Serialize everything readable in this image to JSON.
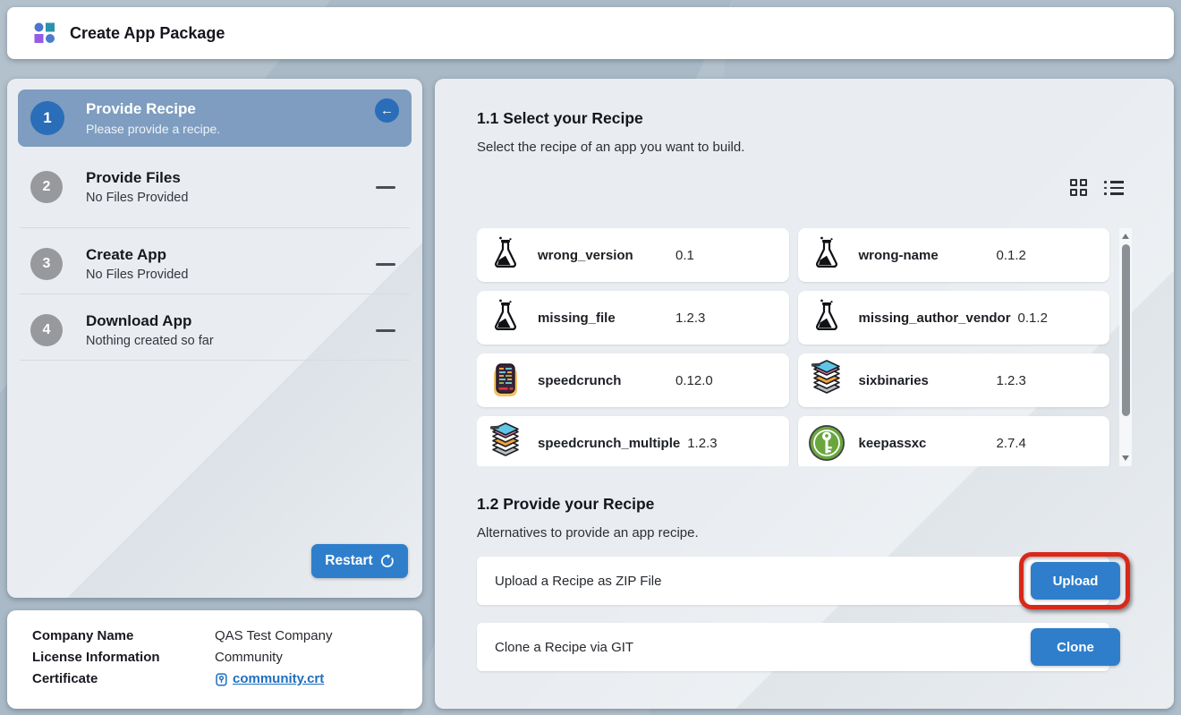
{
  "header": {
    "title": "Create App Package"
  },
  "wizard": {
    "steps": [
      {
        "number": "1",
        "title": "Provide Recipe",
        "subtitle": "Please provide a recipe.",
        "state": "active"
      },
      {
        "number": "2",
        "title": "Provide Files",
        "subtitle": "No Files Provided",
        "state": "pending"
      },
      {
        "number": "3",
        "title": "Create App",
        "subtitle": "No Files Provided",
        "state": "pending"
      },
      {
        "number": "4",
        "title": "Download App",
        "subtitle": "Nothing created so far",
        "state": "pending"
      }
    ],
    "restart_label": "Restart"
  },
  "company": {
    "rows": [
      {
        "label": "Company Name",
        "value": "QAS Test Company"
      },
      {
        "label": "License Information",
        "value": "Community"
      },
      {
        "label": "Certificate",
        "value": "community.crt"
      }
    ]
  },
  "recipe_select": {
    "title": "1.1 Select your Recipe",
    "subtitle": "Select the recipe of an app you want to build.",
    "view_icons": [
      "grid-view-icon",
      "list-view-icon"
    ],
    "recipes": [
      {
        "name": "wrong_version",
        "version": "0.1",
        "icon": "flask"
      },
      {
        "name": "wrong-name",
        "version": "0.1.2",
        "icon": "flask"
      },
      {
        "name": "missing_file",
        "version": "1.2.3",
        "icon": "flask"
      },
      {
        "name": "missing_author_vendor",
        "version": "0.1.2",
        "icon": "flask"
      },
      {
        "name": "speedcrunch",
        "version": "0.12.0",
        "icon": "calculator"
      },
      {
        "name": "sixbinaries",
        "version": "1.2.3",
        "icon": "layers"
      },
      {
        "name": "speedcrunch_multiple",
        "version": "1.2.3",
        "icon": "layers"
      },
      {
        "name": "keepassxc",
        "version": "2.7.4",
        "icon": "keepassxc"
      }
    ]
  },
  "recipe_provide": {
    "title": "1.2 Provide your Recipe",
    "subtitle": "Alternatives to provide an app recipe.",
    "rows": [
      {
        "label": "Upload a Recipe as ZIP File",
        "button": "Upload",
        "highlighted": true
      },
      {
        "label": "Clone a Recipe via GIT",
        "button": "Clone",
        "highlighted": false
      }
    ]
  },
  "colors": {
    "accent_blue": "#2e7ecc",
    "active_step_bg": "#7e9dc0",
    "annotation_red": "#d8281a",
    "link_blue": "#1f6fc0"
  }
}
